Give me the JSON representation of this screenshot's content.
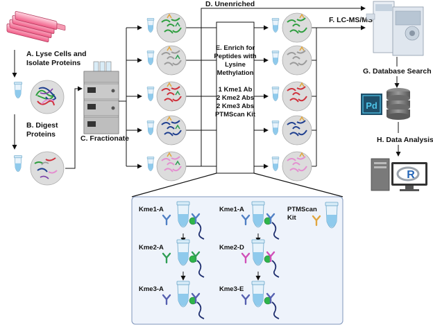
{
  "steps": {
    "lyse_line1": "A. Lyse Cells and",
    "lyse_line2": "Isolate Proteins",
    "digest_line1": "B. Digest",
    "digest_line2": "Proteins",
    "fractionate": "C. Fractionate",
    "unenriched": "D. Unenriched",
    "enrich_lines": [
      "E. Enrich for",
      "Peptides with",
      "Lysine",
      "Methylation",
      "",
      "1 Kme1 Ab",
      "2 Kme2 Abs",
      "2 Kme3 Abs",
      "PTMScan Kit"
    ],
    "lcms": "F. LC-MS/MS",
    "database": "G. Database Search",
    "analysis": "H. Data Analysis"
  },
  "software": {
    "pd_label": "Pd",
    "r_label": "R"
  },
  "enrichment_panel": {
    "col1": [
      "Kme1-A",
      "Kme2-A",
      "Kme3-A"
    ],
    "col2": [
      "Kme1-A",
      "Kme2-D",
      "Kme3-E"
    ],
    "kit_line1": "PTMScan",
    "kit_line2": "Kit"
  },
  "colors": {
    "fraction_peptides": [
      "#2e9e3e",
      "#9a9a9a",
      "#cf2f3a",
      "#1f3f8f",
      "#e48fd0"
    ],
    "panel_fill": "#eef3fb",
    "panel_border": "#7f95bb",
    "tube_blue": "#9fd4ee",
    "tube_fill": "#e8f3fb",
    "kme1": "#4f7fc4",
    "kme2a": "#2f9e55",
    "kme2d": "#d04fb8",
    "kme3": "#5560b0",
    "kit": "#e0a640"
  }
}
